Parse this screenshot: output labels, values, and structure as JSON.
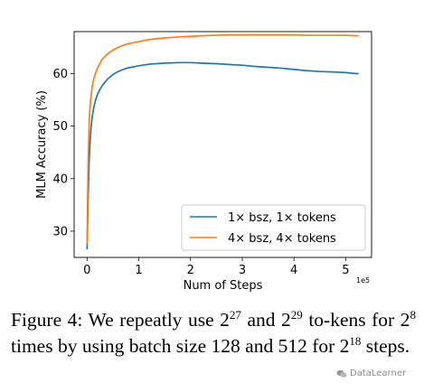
{
  "chart_data": {
    "type": "line",
    "xlabel": "Num of Steps",
    "ylabel": "MLM Accuracy (%)",
    "x_scale_label": "1e5",
    "xlim": [
      -0.25,
      5.5
    ],
    "ylim": [
      25,
      68
    ],
    "x_ticks": [
      0,
      1,
      2,
      3,
      4,
      5
    ],
    "y_ticks": [
      30,
      40,
      50,
      60
    ],
    "grid": false,
    "legend_position": "lower-right",
    "series": [
      {
        "name": "1× bsz, 1× tokens",
        "color": "#1f77b4",
        "x": [
          0.0,
          0.02,
          0.04,
          0.06,
          0.08,
          0.1,
          0.13,
          0.16,
          0.2,
          0.25,
          0.3,
          0.4,
          0.5,
          0.6,
          0.7,
          0.8,
          1.0,
          1.2,
          1.5,
          1.8,
          2.0,
          2.2,
          2.5,
          2.8,
          3.0,
          3.2,
          3.5,
          3.8,
          4.0,
          4.2,
          4.5,
          4.8,
          5.0,
          5.2,
          5.25
        ],
        "y": [
          26.5,
          36.0,
          43.0,
          47.5,
          50.0,
          51.8,
          53.5,
          54.8,
          56.0,
          57.0,
          57.8,
          59.0,
          59.8,
          60.4,
          60.8,
          61.1,
          61.5,
          61.8,
          62.0,
          62.1,
          62.1,
          62.0,
          61.9,
          61.7,
          61.6,
          61.4,
          61.2,
          61.0,
          60.8,
          60.6,
          60.4,
          60.3,
          60.2,
          60.0,
          60.0
        ]
      },
      {
        "name": "4× bsz, 4× tokens",
        "color": "#ff7f0e",
        "x": [
          0.0,
          0.02,
          0.04,
          0.06,
          0.08,
          0.1,
          0.13,
          0.16,
          0.2,
          0.25,
          0.3,
          0.4,
          0.5,
          0.6,
          0.7,
          0.8,
          1.0,
          1.2,
          1.5,
          1.8,
          2.0,
          2.2,
          2.5,
          2.8,
          3.0,
          3.2,
          3.5,
          3.8,
          4.0,
          4.2,
          4.5,
          4.8,
          5.0,
          5.2,
          5.25
        ],
        "y": [
          27.5,
          43.0,
          50.5,
          54.0,
          56.0,
          57.5,
          59.0,
          60.0,
          61.0,
          62.0,
          62.8,
          63.8,
          64.5,
          65.0,
          65.4,
          65.7,
          66.1,
          66.5,
          66.8,
          67.0,
          67.1,
          67.2,
          67.3,
          67.4,
          67.4,
          67.4,
          67.4,
          67.4,
          67.4,
          67.3,
          67.3,
          67.3,
          67.3,
          67.2,
          67.2
        ]
      }
    ]
  },
  "caption": {
    "text_1": "Figure 4: We repeatly use 2",
    "sup_1": "27",
    "text_2": " and 2",
    "sup_2": "29",
    "text_3": " to-kens for 2",
    "sup_3": "8",
    "text_4": " times by using batch size 128 and 512 for 2",
    "sup_4": "18",
    "text_5": " steps."
  },
  "watermark": {
    "text": "DataLearner",
    "icon": "wechat-icon"
  }
}
